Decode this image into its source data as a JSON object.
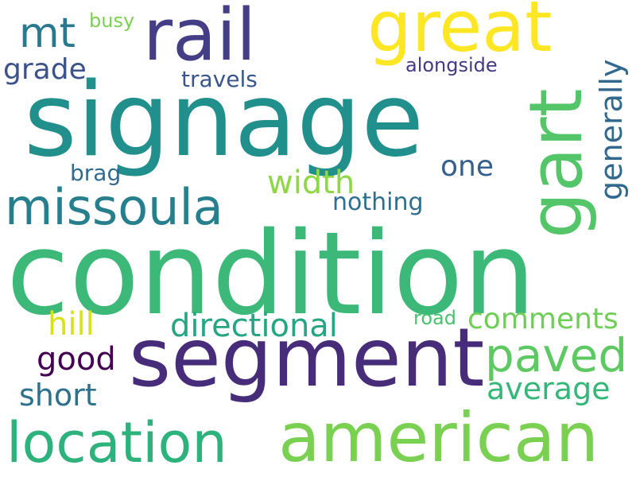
{
  "words": {
    "condition": {
      "text": "condition",
      "color": "#3cb878"
    },
    "signage": {
      "text": "signage",
      "color": "#21908c"
    },
    "segment": {
      "text": "segment",
      "color": "#472c7a"
    },
    "american": {
      "text": "american",
      "color": "#7ad151"
    },
    "rail": {
      "text": "rail",
      "color": "#433e85"
    },
    "great": {
      "text": "great",
      "color": "#fde725"
    },
    "gart": {
      "text": "gart",
      "color": "#54c568"
    },
    "location": {
      "text": "location",
      "color": "#2db27d"
    },
    "missoula": {
      "text": "missoula",
      "color": "#277f8e"
    },
    "paved": {
      "text": "paved",
      "color": "#5ec962"
    },
    "mt": {
      "text": "mt",
      "color": "#2a788e"
    },
    "directional": {
      "text": "directional",
      "color": "#25a584"
    },
    "average": {
      "text": "average",
      "color": "#35b779"
    },
    "comments": {
      "text": "comments",
      "color": "#6ece58"
    },
    "width": {
      "text": "width",
      "color": "#8fd744"
    },
    "short": {
      "text": "short",
      "color": "#2c728e"
    },
    "good": {
      "text": "good",
      "color": "#440154"
    },
    "hill": {
      "text": "hill",
      "color": "#d8e219"
    },
    "grade": {
      "text": "grade",
      "color": "#3b528b"
    },
    "generally": {
      "text": "generally",
      "color": "#31688e"
    },
    "one": {
      "text": "one",
      "color": "#355f8d"
    },
    "travels": {
      "text": "travels",
      "color": "#39568c"
    },
    "nothing": {
      "text": "nothing",
      "color": "#2d708e"
    },
    "brag": {
      "text": "brag",
      "color": "#306a8e"
    },
    "alongside": {
      "text": "alongside",
      "color": "#443a83"
    },
    "busy": {
      "text": "busy",
      "color": "#7ad151"
    },
    "road": {
      "text": "road",
      "color": "#4ac16d"
    }
  }
}
